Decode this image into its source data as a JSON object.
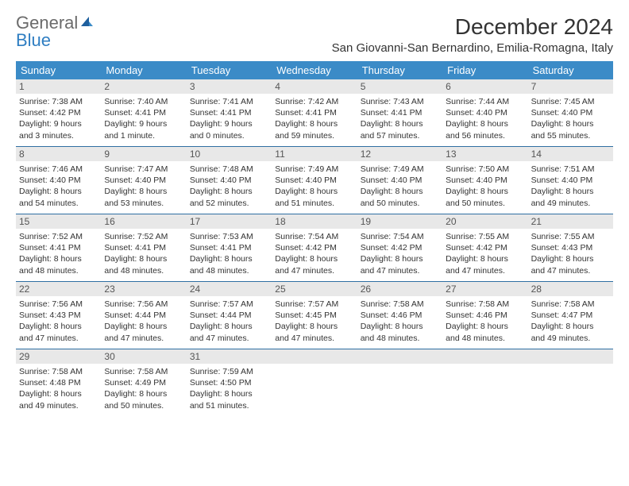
{
  "brand": {
    "part1": "General",
    "part2": "Blue"
  },
  "title": "December 2024",
  "location": "San Giovanni-San Bernardino, Emilia-Romagna, Italy",
  "colors": {
    "header_bg": "#3b8bc7",
    "header_text": "#ffffff",
    "daynum_bg": "#e8e8e8",
    "week_divider": "#2f6fa3",
    "text": "#333333",
    "brand_gray": "#6b6b6b",
    "brand_blue": "#2f7ec2"
  },
  "dayNames": [
    "Sunday",
    "Monday",
    "Tuesday",
    "Wednesday",
    "Thursday",
    "Friday",
    "Saturday"
  ],
  "weeks": [
    [
      {
        "n": "1",
        "sr": "Sunrise: 7:38 AM",
        "ss": "Sunset: 4:42 PM",
        "d1": "Daylight: 9 hours",
        "d2": "and 3 minutes."
      },
      {
        "n": "2",
        "sr": "Sunrise: 7:40 AM",
        "ss": "Sunset: 4:41 PM",
        "d1": "Daylight: 9 hours",
        "d2": "and 1 minute."
      },
      {
        "n": "3",
        "sr": "Sunrise: 7:41 AM",
        "ss": "Sunset: 4:41 PM",
        "d1": "Daylight: 9 hours",
        "d2": "and 0 minutes."
      },
      {
        "n": "4",
        "sr": "Sunrise: 7:42 AM",
        "ss": "Sunset: 4:41 PM",
        "d1": "Daylight: 8 hours",
        "d2": "and 59 minutes."
      },
      {
        "n": "5",
        "sr": "Sunrise: 7:43 AM",
        "ss": "Sunset: 4:41 PM",
        "d1": "Daylight: 8 hours",
        "d2": "and 57 minutes."
      },
      {
        "n": "6",
        "sr": "Sunrise: 7:44 AM",
        "ss": "Sunset: 4:40 PM",
        "d1": "Daylight: 8 hours",
        "d2": "and 56 minutes."
      },
      {
        "n": "7",
        "sr": "Sunrise: 7:45 AM",
        "ss": "Sunset: 4:40 PM",
        "d1": "Daylight: 8 hours",
        "d2": "and 55 minutes."
      }
    ],
    [
      {
        "n": "8",
        "sr": "Sunrise: 7:46 AM",
        "ss": "Sunset: 4:40 PM",
        "d1": "Daylight: 8 hours",
        "d2": "and 54 minutes."
      },
      {
        "n": "9",
        "sr": "Sunrise: 7:47 AM",
        "ss": "Sunset: 4:40 PM",
        "d1": "Daylight: 8 hours",
        "d2": "and 53 minutes."
      },
      {
        "n": "10",
        "sr": "Sunrise: 7:48 AM",
        "ss": "Sunset: 4:40 PM",
        "d1": "Daylight: 8 hours",
        "d2": "and 52 minutes."
      },
      {
        "n": "11",
        "sr": "Sunrise: 7:49 AM",
        "ss": "Sunset: 4:40 PM",
        "d1": "Daylight: 8 hours",
        "d2": "and 51 minutes."
      },
      {
        "n": "12",
        "sr": "Sunrise: 7:49 AM",
        "ss": "Sunset: 4:40 PM",
        "d1": "Daylight: 8 hours",
        "d2": "and 50 minutes."
      },
      {
        "n": "13",
        "sr": "Sunrise: 7:50 AM",
        "ss": "Sunset: 4:40 PM",
        "d1": "Daylight: 8 hours",
        "d2": "and 50 minutes."
      },
      {
        "n": "14",
        "sr": "Sunrise: 7:51 AM",
        "ss": "Sunset: 4:40 PM",
        "d1": "Daylight: 8 hours",
        "d2": "and 49 minutes."
      }
    ],
    [
      {
        "n": "15",
        "sr": "Sunrise: 7:52 AM",
        "ss": "Sunset: 4:41 PM",
        "d1": "Daylight: 8 hours",
        "d2": "and 48 minutes."
      },
      {
        "n": "16",
        "sr": "Sunrise: 7:52 AM",
        "ss": "Sunset: 4:41 PM",
        "d1": "Daylight: 8 hours",
        "d2": "and 48 minutes."
      },
      {
        "n": "17",
        "sr": "Sunrise: 7:53 AM",
        "ss": "Sunset: 4:41 PM",
        "d1": "Daylight: 8 hours",
        "d2": "and 48 minutes."
      },
      {
        "n": "18",
        "sr": "Sunrise: 7:54 AM",
        "ss": "Sunset: 4:42 PM",
        "d1": "Daylight: 8 hours",
        "d2": "and 47 minutes."
      },
      {
        "n": "19",
        "sr": "Sunrise: 7:54 AM",
        "ss": "Sunset: 4:42 PM",
        "d1": "Daylight: 8 hours",
        "d2": "and 47 minutes."
      },
      {
        "n": "20",
        "sr": "Sunrise: 7:55 AM",
        "ss": "Sunset: 4:42 PM",
        "d1": "Daylight: 8 hours",
        "d2": "and 47 minutes."
      },
      {
        "n": "21",
        "sr": "Sunrise: 7:55 AM",
        "ss": "Sunset: 4:43 PM",
        "d1": "Daylight: 8 hours",
        "d2": "and 47 minutes."
      }
    ],
    [
      {
        "n": "22",
        "sr": "Sunrise: 7:56 AM",
        "ss": "Sunset: 4:43 PM",
        "d1": "Daylight: 8 hours",
        "d2": "and 47 minutes."
      },
      {
        "n": "23",
        "sr": "Sunrise: 7:56 AM",
        "ss": "Sunset: 4:44 PM",
        "d1": "Daylight: 8 hours",
        "d2": "and 47 minutes."
      },
      {
        "n": "24",
        "sr": "Sunrise: 7:57 AM",
        "ss": "Sunset: 4:44 PM",
        "d1": "Daylight: 8 hours",
        "d2": "and 47 minutes."
      },
      {
        "n": "25",
        "sr": "Sunrise: 7:57 AM",
        "ss": "Sunset: 4:45 PM",
        "d1": "Daylight: 8 hours",
        "d2": "and 47 minutes."
      },
      {
        "n": "26",
        "sr": "Sunrise: 7:58 AM",
        "ss": "Sunset: 4:46 PM",
        "d1": "Daylight: 8 hours",
        "d2": "and 48 minutes."
      },
      {
        "n": "27",
        "sr": "Sunrise: 7:58 AM",
        "ss": "Sunset: 4:46 PM",
        "d1": "Daylight: 8 hours",
        "d2": "and 48 minutes."
      },
      {
        "n": "28",
        "sr": "Sunrise: 7:58 AM",
        "ss": "Sunset: 4:47 PM",
        "d1": "Daylight: 8 hours",
        "d2": "and 49 minutes."
      }
    ],
    [
      {
        "n": "29",
        "sr": "Sunrise: 7:58 AM",
        "ss": "Sunset: 4:48 PM",
        "d1": "Daylight: 8 hours",
        "d2": "and 49 minutes."
      },
      {
        "n": "30",
        "sr": "Sunrise: 7:58 AM",
        "ss": "Sunset: 4:49 PM",
        "d1": "Daylight: 8 hours",
        "d2": "and 50 minutes."
      },
      {
        "n": "31",
        "sr": "Sunrise: 7:59 AM",
        "ss": "Sunset: 4:50 PM",
        "d1": "Daylight: 8 hours",
        "d2": "and 51 minutes."
      },
      {
        "n": "",
        "sr": "",
        "ss": "",
        "d1": "",
        "d2": "",
        "empty": true
      },
      {
        "n": "",
        "sr": "",
        "ss": "",
        "d1": "",
        "d2": "",
        "empty": true
      },
      {
        "n": "",
        "sr": "",
        "ss": "",
        "d1": "",
        "d2": "",
        "empty": true
      },
      {
        "n": "",
        "sr": "",
        "ss": "",
        "d1": "",
        "d2": "",
        "empty": true
      }
    ]
  ]
}
